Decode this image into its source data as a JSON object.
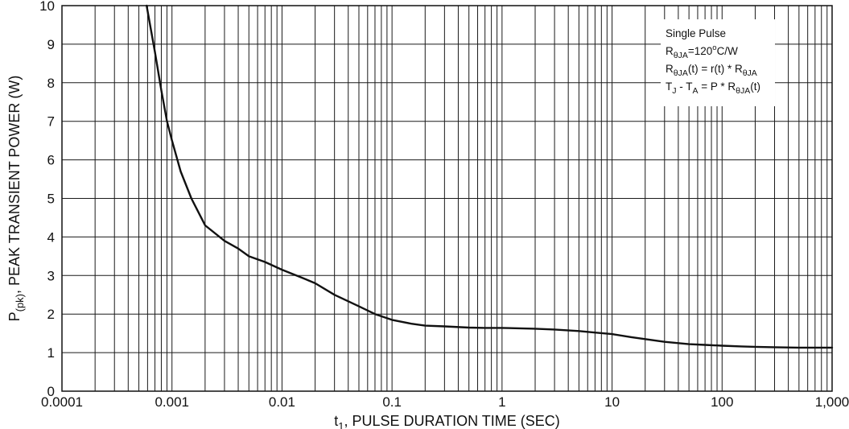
{
  "chart_data": {
    "type": "line",
    "x_scale": "log",
    "xlim": [
      0.0001,
      1000
    ],
    "ylim": [
      0,
      10
    ],
    "grid": true,
    "x_ticks": [
      "0.0001",
      "0.001",
      "0.01",
      "0.1",
      "1",
      "10",
      "100",
      "1,000"
    ],
    "y_ticks": [
      "0",
      "1",
      "2",
      "3",
      "4",
      "5",
      "6",
      "7",
      "8",
      "9",
      "10"
    ],
    "xlabel": {
      "main": "t",
      "sub": "1",
      "rest": ", PULSE DURATION TIME (SEC)"
    },
    "ylabel": {
      "main": "P",
      "sub": "(pk)",
      "rest": ", PEAK TRANSIENT POWER (W)"
    },
    "legend": {
      "placement": "top-right",
      "lines": [
        [
          {
            "t": "Single Pulse"
          }
        ],
        [
          {
            "t": "R"
          },
          {
            "t": "θJA",
            "sub": true
          },
          {
            "t": "=120"
          },
          {
            "t": "o",
            "sup": true
          },
          {
            "t": "C/W"
          }
        ],
        [
          {
            "t": "R"
          },
          {
            "t": "θJA",
            "sub": true
          },
          {
            "t": "(t) = r(t) * R"
          },
          {
            "t": "θJA",
            "sub": true
          }
        ],
        [
          {
            "t": "T"
          },
          {
            "t": "J",
            "sub": true
          },
          {
            "t": " - T"
          },
          {
            "t": "A",
            "sub": true
          },
          {
            "t": " = P * R"
          },
          {
            "t": "θJA",
            "sub": true
          },
          {
            "t": "(t)"
          }
        ]
      ]
    },
    "series": [
      {
        "x": [
          0.00058,
          0.0007,
          0.0008,
          0.0009,
          0.001,
          0.0012,
          0.0015,
          0.002,
          0.003,
          0.004,
          0.005,
          0.007,
          0.01,
          0.015,
          0.02,
          0.03,
          0.05,
          0.07,
          0.1,
          0.15,
          0.2,
          0.3,
          0.5,
          0.7,
          1,
          2,
          3,
          5,
          7,
          10,
          15,
          20,
          30,
          50,
          70,
          100,
          150,
          200,
          300,
          500,
          700,
          1000
        ],
        "y": [
          10.1,
          8.8,
          7.8,
          7.0,
          6.5,
          5.7,
          5.0,
          4.3,
          3.9,
          3.7,
          3.5,
          3.35,
          3.15,
          2.95,
          2.8,
          2.5,
          2.2,
          2.0,
          1.85,
          1.75,
          1.7,
          1.68,
          1.65,
          1.64,
          1.64,
          1.62,
          1.6,
          1.56,
          1.52,
          1.48,
          1.4,
          1.35,
          1.28,
          1.22,
          1.2,
          1.18,
          1.16,
          1.15,
          1.14,
          1.13,
          1.13,
          1.13
        ]
      }
    ]
  }
}
